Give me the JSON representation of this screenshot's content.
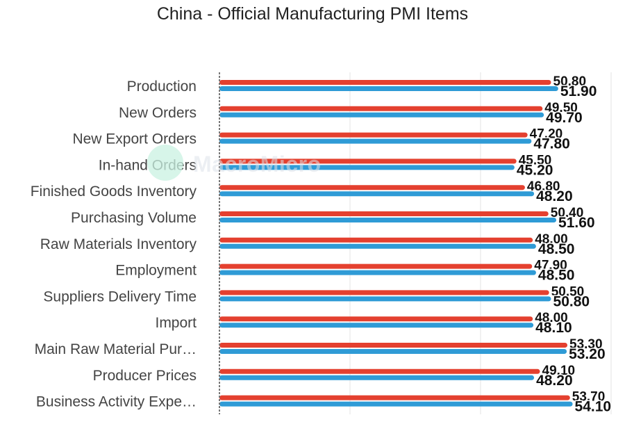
{
  "chart_data": {
    "type": "bar",
    "orientation": "horizontal",
    "title": "China - Official Manufacturing PMI Items",
    "xlabel": "",
    "ylabel": "",
    "xlim": [
      0,
      60
    ],
    "grid": true,
    "legend": "none",
    "categories": [
      "Production",
      "New Orders",
      "New Export Orders",
      "In-hand Orders",
      "Finished Goods Inventory",
      "Purchasing Volume",
      "Raw Materials Inventory",
      "Employment",
      "Suppliers Delivery Time",
      "Import",
      "Main Raw Material Pur…",
      "Producer Prices",
      "Business Activity Expe…"
    ],
    "series": [
      {
        "color": "#e4402f",
        "values": [
          50.8,
          49.5,
          47.2,
          45.5,
          46.8,
          50.4,
          48.0,
          47.9,
          50.5,
          48.0,
          53.3,
          49.1,
          53.7
        ],
        "labels": [
          "50.80",
          "49.50",
          "47.20",
          "45.50",
          "46.80",
          "50.40",
          "48.00",
          "47.90",
          "50.50",
          "48.00",
          "53.30",
          "49.10",
          "53.70"
        ]
      },
      {
        "color": "#2f9bd6",
        "values": [
          51.9,
          49.7,
          47.8,
          45.2,
          48.2,
          51.6,
          48.5,
          48.5,
          50.8,
          48.1,
          53.2,
          48.2,
          54.1
        ],
        "labels": [
          "51.90",
          "49.70",
          "47.80",
          "45.20",
          "48.20",
          "51.60",
          "48.50",
          "48.50",
          "50.80",
          "48.10",
          "53.20",
          "48.20",
          "54.10"
        ]
      }
    ]
  },
  "watermark": "MacroMicro"
}
